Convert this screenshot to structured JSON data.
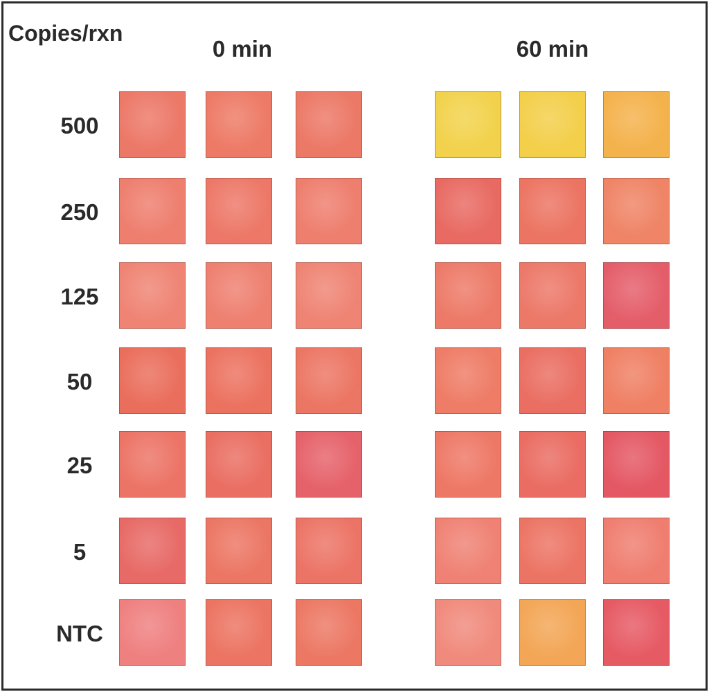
{
  "y_label": "Copies/rxn",
  "groups": [
    {
      "label": "0 min"
    },
    {
      "label": "60 min"
    }
  ],
  "rows": [
    {
      "label": "500",
      "colors": [
        "#ec7868",
        "#ed7a66",
        "#ec7866",
        "#f2d24c",
        "#f3cf4a",
        "#f4b24c"
      ]
    },
    {
      "label": "250",
      "colors": [
        "#ee7e6e",
        "#ed7868",
        "#ee7e6e",
        "#e86a62",
        "#ec7462",
        "#ef8466"
      ]
    },
    {
      "label": "125",
      "colors": [
        "#ef8474",
        "#ee8070",
        "#ef8474",
        "#ed7a68",
        "#ec7868",
        "#e45e6a"
      ]
    },
    {
      "label": "50",
      "colors": [
        "#ea6e5c",
        "#ec7260",
        "#ec7664",
        "#ee7c66",
        "#ea6e62",
        "#ef8064"
      ]
    },
    {
      "label": "25",
      "colors": [
        "#ec7466",
        "#ea6e62",
        "#e6626a",
        "#ee7866",
        "#ea6c62",
        "#e45864"
      ]
    },
    {
      "label": "5",
      "colors": [
        "#e76a66",
        "#ec7664",
        "#ec7466",
        "#ef8274",
        "#ec7464",
        "#ef7e70"
      ]
    },
    {
      "label": "NTC",
      "colors": [
        "#ef8080",
        "#ec7462",
        "#ec7864",
        "#f08a7c",
        "#f3a656",
        "#e65a64"
      ]
    }
  ]
}
